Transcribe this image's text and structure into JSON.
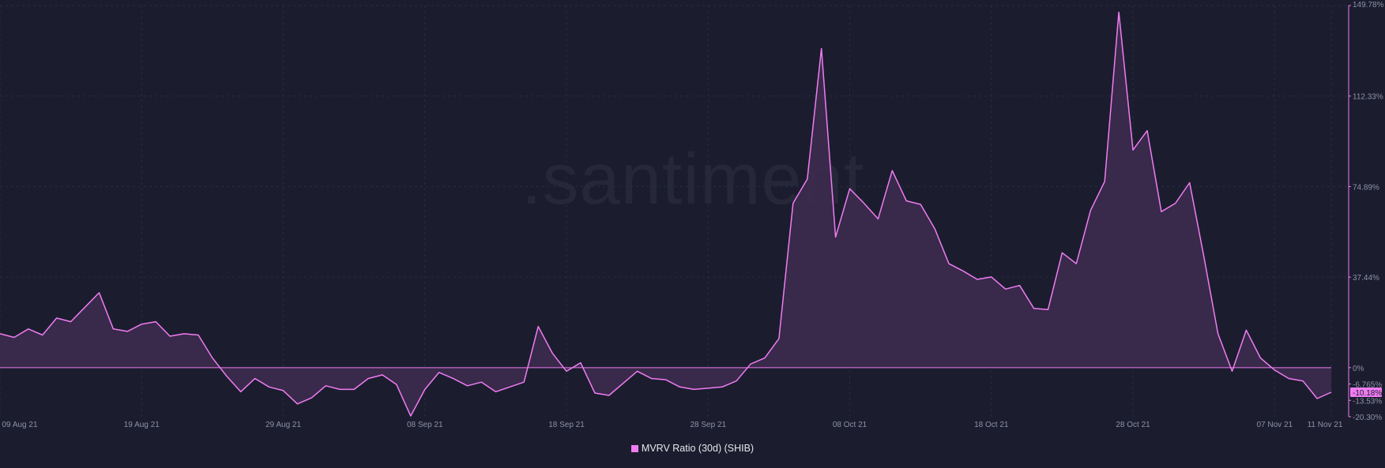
{
  "watermark": ".santiment",
  "colors": {
    "line": "#f07cf2",
    "area": "#3b2a4c",
    "background": "#1b1d2e",
    "grid": "#2a2c40",
    "last_badge": "#f07cf2"
  },
  "chart_data": {
    "type": "area",
    "title": "",
    "xlabel": "",
    "ylabel": "",
    "grid": true,
    "legend_placement": "bottom-center",
    "x_start": "2021-08-09",
    "x_end": "2021-11-11",
    "ylim": [
      -20.3,
      149.78
    ],
    "x_ticks": [
      "09 Aug 21",
      "19 Aug 21",
      "29 Aug 21",
      "08 Sep 21",
      "18 Sep 21",
      "28 Sep 21",
      "08 Oct 21",
      "18 Oct 21",
      "28 Oct 21",
      "07 Nov 21",
      "11 Nov 21"
    ],
    "y_ticks": [
      {
        "label": "149.78%",
        "value": 149.78
      },
      {
        "label": "112.33%",
        "value": 112.33
      },
      {
        "label": "74.89%",
        "value": 74.89
      },
      {
        "label": "37.44%",
        "value": 37.44
      },
      {
        "label": "0%",
        "value": 0
      },
      {
        "label": "-6.765%",
        "value": -6.765
      },
      {
        "label": "-13.53%",
        "value": -13.53
      },
      {
        "label": "-20.30%",
        "value": -20.3
      }
    ],
    "last_value_label": "-10.18%",
    "series": [
      {
        "name": "MVRV Ratio (30d) (SHIB)",
        "color": "#f07cf2",
        "points": [
          [
            "2021-08-09",
            14.0
          ],
          [
            "2021-08-10",
            12.5
          ],
          [
            "2021-08-11",
            16.0
          ],
          [
            "2021-08-12",
            13.5
          ],
          [
            "2021-08-13",
            20.5
          ],
          [
            "2021-08-14",
            19.0
          ],
          [
            "2021-08-15",
            25.0
          ],
          [
            "2021-08-16",
            31.0
          ],
          [
            "2021-08-17",
            16.0
          ],
          [
            "2021-08-18",
            15.0
          ],
          [
            "2021-08-19",
            18.0
          ],
          [
            "2021-08-20",
            19.0
          ],
          [
            "2021-08-21",
            13.0
          ],
          [
            "2021-08-22",
            14.0
          ],
          [
            "2021-08-23",
            13.5
          ],
          [
            "2021-08-24",
            4.0
          ],
          [
            "2021-08-25",
            -3.5
          ],
          [
            "2021-08-26",
            -10.0
          ],
          [
            "2021-08-27",
            -4.5
          ],
          [
            "2021-08-28",
            -8.0
          ],
          [
            "2021-08-29",
            -9.5
          ],
          [
            "2021-08-30",
            -15.0
          ],
          [
            "2021-08-31",
            -12.5
          ],
          [
            "2021-09-01",
            -7.5
          ],
          [
            "2021-09-02",
            -9.0
          ],
          [
            "2021-09-03",
            -9.0
          ],
          [
            "2021-09-04",
            -4.5
          ],
          [
            "2021-09-05",
            -3.0
          ],
          [
            "2021-09-06",
            -7.0
          ],
          [
            "2021-09-07",
            -20.0
          ],
          [
            "2021-09-08",
            -9.0
          ],
          [
            "2021-09-09",
            -2.0
          ],
          [
            "2021-09-10",
            -4.5
          ],
          [
            "2021-09-11",
            -7.5
          ],
          [
            "2021-09-12",
            -6.0
          ],
          [
            "2021-09-13",
            -10.0
          ],
          [
            "2021-09-14",
            -8.0
          ],
          [
            "2021-09-15",
            -6.0
          ],
          [
            "2021-09-16",
            17.0
          ],
          [
            "2021-09-17",
            6.0
          ],
          [
            "2021-09-18",
            -1.5
          ],
          [
            "2021-09-19",
            2.0
          ],
          [
            "2021-09-20",
            -10.5
          ],
          [
            "2021-09-21",
            -11.5
          ],
          [
            "2021-09-22",
            -6.5
          ],
          [
            "2021-09-23",
            -1.5
          ],
          [
            "2021-09-24",
            -4.5
          ],
          [
            "2021-09-25",
            -5.0
          ],
          [
            "2021-09-26",
            -8.0
          ],
          [
            "2021-09-27",
            -9.0
          ],
          [
            "2021-09-28",
            -8.5
          ],
          [
            "2021-09-29",
            -8.0
          ],
          [
            "2021-09-30",
            -5.5
          ],
          [
            "2021-10-01",
            1.5
          ],
          [
            "2021-10-02",
            4.0
          ],
          [
            "2021-10-03",
            12.0
          ],
          [
            "2021-10-04",
            68.0
          ],
          [
            "2021-10-05",
            78.0
          ],
          [
            "2021-10-06",
            132.0
          ],
          [
            "2021-10-07",
            54.0
          ],
          [
            "2021-10-08",
            74.0
          ],
          [
            "2021-10-09",
            68.0
          ],
          [
            "2021-10-10",
            61.5
          ],
          [
            "2021-10-11",
            81.5
          ],
          [
            "2021-10-12",
            69.0
          ],
          [
            "2021-10-13",
            67.5
          ],
          [
            "2021-10-14",
            57.5
          ],
          [
            "2021-10-15",
            43.0
          ],
          [
            "2021-10-16",
            40.0
          ],
          [
            "2021-10-17",
            36.5
          ],
          [
            "2021-10-18",
            37.5
          ],
          [
            "2021-10-19",
            32.5
          ],
          [
            "2021-10-20",
            34.0
          ],
          [
            "2021-10-21",
            24.5
          ],
          [
            "2021-10-22",
            24.0
          ],
          [
            "2021-10-23",
            47.5
          ],
          [
            "2021-10-24",
            43.0
          ],
          [
            "2021-10-25",
            65.0
          ],
          [
            "2021-10-26",
            77.0
          ],
          [
            "2021-10-27",
            147.0
          ],
          [
            "2021-10-28",
            90.0
          ],
          [
            "2021-10-29",
            98.0
          ],
          [
            "2021-10-30",
            64.5
          ],
          [
            "2021-10-31",
            68.0
          ],
          [
            "2021-11-01",
            76.5
          ],
          [
            "2021-11-02",
            46.0
          ],
          [
            "2021-11-03",
            14.0
          ],
          [
            "2021-11-04",
            -1.5
          ],
          [
            "2021-11-05",
            15.5
          ],
          [
            "2021-11-06",
            4.0
          ],
          [
            "2021-11-07",
            -1.0
          ],
          [
            "2021-11-08",
            -4.5
          ],
          [
            "2021-11-09",
            -5.5
          ],
          [
            "2021-11-10",
            -12.8
          ],
          [
            "2021-11-11",
            -10.18
          ]
        ]
      }
    ]
  }
}
